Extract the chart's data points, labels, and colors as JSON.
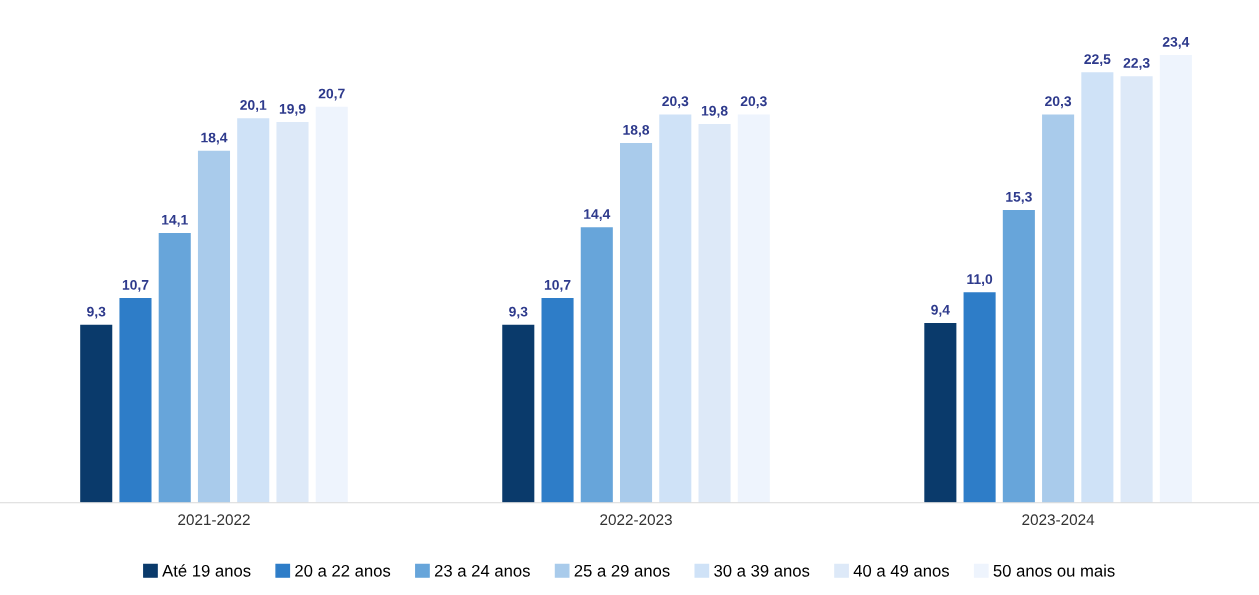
{
  "chart_data": {
    "type": "bar",
    "categories": [
      "2021-2022",
      "2022-2023",
      "2023-2024"
    ],
    "series": [
      {
        "name": "Até 19 anos",
        "color": "#0a3a6b",
        "values": [
          9.3,
          9.3,
          9.4
        ],
        "value_labels": [
          "9,3",
          "9,3",
          "9,4"
        ]
      },
      {
        "name": "20 a 22 anos",
        "color": "#2e7dc8",
        "values": [
          10.7,
          10.7,
          11.0
        ],
        "value_labels": [
          "10,7",
          "10,7",
          "11,0"
        ]
      },
      {
        "name": "23 a 24 anos",
        "color": "#67a5da",
        "values": [
          14.1,
          14.4,
          15.3
        ],
        "value_labels": [
          "14,1",
          "14,4",
          "15,3"
        ]
      },
      {
        "name": "25 a 29 anos",
        "color": "#a9cbeb",
        "values": [
          18.4,
          18.8,
          20.3
        ],
        "value_labels": [
          "18,4",
          "18,8",
          "20,3"
        ]
      },
      {
        "name": "30 a 39 anos",
        "color": "#cfe2f7",
        "values": [
          20.1,
          20.3,
          22.5
        ],
        "value_labels": [
          "20,1",
          "20,3",
          "22,5"
        ]
      },
      {
        "name": "40 a 49 anos",
        "color": "#dde9f8",
        "values": [
          19.9,
          19.8,
          22.3
        ],
        "value_labels": [
          "19,9",
          "19,8",
          "22,3"
        ]
      },
      {
        "name": "50 anos ou mais",
        "color": "#eef4fd",
        "values": [
          20.7,
          20.3,
          23.4
        ],
        "value_labels": [
          "20,7",
          "20,3",
          "23,4"
        ]
      }
    ],
    "tick_labels": "x",
    "legend": "bottom",
    "grid": false
  }
}
